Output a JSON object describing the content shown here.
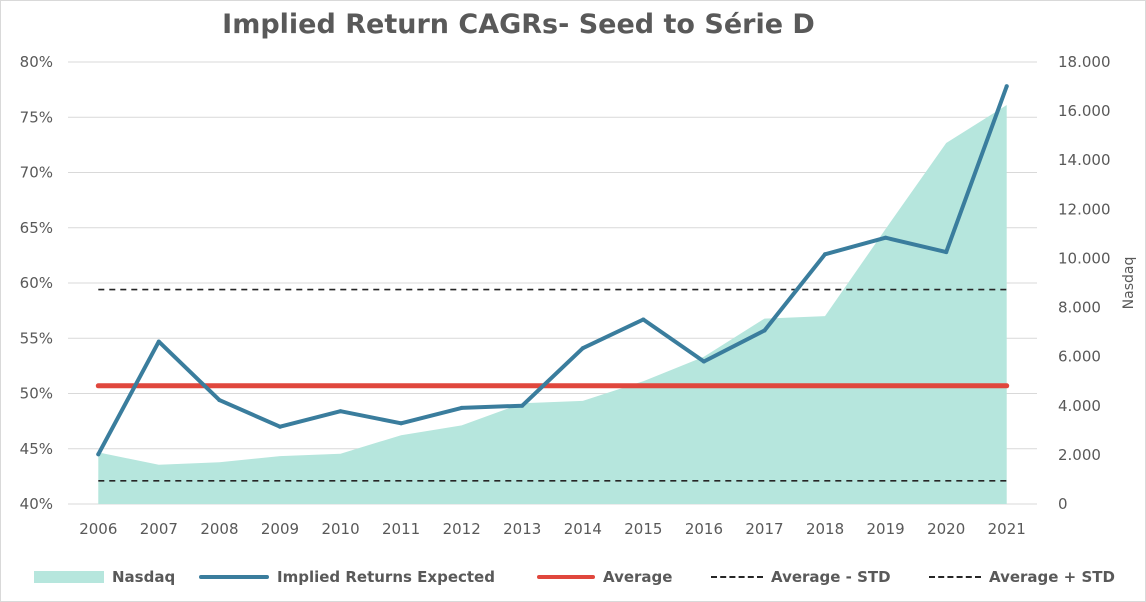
{
  "chart_data": {
    "type": "line",
    "title": "Implied Return CAGRs- Seed to Série D",
    "xlabel": "",
    "ylabel": "",
    "y2label": "Nasdaq",
    "categories": [
      "2006",
      "2007",
      "2008",
      "2009",
      "2010",
      "2011",
      "2012",
      "2013",
      "2014",
      "2015",
      "2016",
      "2017",
      "2018",
      "2019",
      "2020",
      "2021"
    ],
    "ylim": [
      0.4,
      0.8
    ],
    "y_ticks": [
      "40%",
      "45%",
      "50%",
      "55%",
      "60%",
      "65%",
      "70%",
      "75%",
      "80%"
    ],
    "y2lim": [
      0,
      18000
    ],
    "y2_ticks": [
      "0",
      "2.000",
      "4.000",
      "6.000",
      "8.000",
      "10.000",
      "12.000",
      "14.000",
      "16.000",
      "18.000"
    ],
    "grid": true,
    "legend": "bottom",
    "series": [
      {
        "name": "Nasdaq",
        "kind": "area",
        "axis": "right",
        "color": "#b6e6dd",
        "values": [
          2100,
          1600,
          1700,
          1950,
          2050,
          2800,
          3200,
          4100,
          4200,
          5000,
          6000,
          7550,
          7650,
          11200,
          14700,
          16250
        ]
      },
      {
        "name": "Implied Returns Expected",
        "kind": "line",
        "axis": "left",
        "color": "#3a7d9d",
        "values": [
          0.445,
          0.547,
          0.494,
          0.47,
          0.484,
          0.473,
          0.487,
          0.489,
          0.541,
          0.567,
          0.529,
          0.557,
          0.626,
          0.641,
          0.628,
          0.778
        ]
      },
      {
        "name": "Average",
        "kind": "line",
        "axis": "left",
        "color": "#e0473d",
        "values": [
          0.507,
          0.507,
          0.507,
          0.507,
          0.507,
          0.507,
          0.507,
          0.507,
          0.507,
          0.507,
          0.507,
          0.507,
          0.507,
          0.507,
          0.507,
          0.507
        ]
      },
      {
        "name": "Average - STD",
        "kind": "dashed",
        "axis": "left",
        "color": "#262626",
        "values": [
          0.421,
          0.421,
          0.421,
          0.421,
          0.421,
          0.421,
          0.421,
          0.421,
          0.421,
          0.421,
          0.421,
          0.421,
          0.421,
          0.421,
          0.421,
          0.421
        ]
      },
      {
        "name": "Average + STD",
        "kind": "dashed",
        "axis": "left",
        "color": "#262626",
        "values": [
          0.594,
          0.594,
          0.594,
          0.594,
          0.594,
          0.594,
          0.594,
          0.594,
          0.594,
          0.594,
          0.594,
          0.594,
          0.594,
          0.594,
          0.594,
          0.594
        ]
      }
    ]
  }
}
